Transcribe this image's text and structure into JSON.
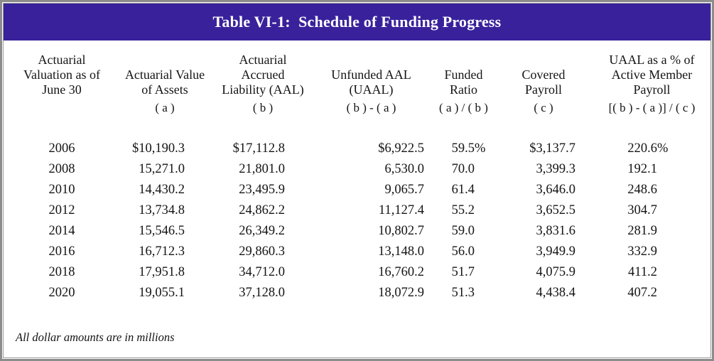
{
  "title": "Table VI-1:  Schedule of Funding Progress",
  "footnote": "All dollar amounts are in millions",
  "colors": {
    "header_band": "#39219B",
    "header_text": "#FFFFFF",
    "body_text": "#141414",
    "border_gray": "#8C8C8C"
  },
  "table": {
    "columns": [
      {
        "lines": [
          "Actuarial",
          "Valuation as of",
          "June 30"
        ],
        "formula": ""
      },
      {
        "lines": [
          "Actuarial Value",
          "of Assets"
        ],
        "formula": "( a )"
      },
      {
        "lines": [
          "Actuarial",
          "Accrued",
          "Liability (AAL)"
        ],
        "formula": "( b )"
      },
      {
        "lines": [
          "Unfunded AAL",
          "(UAAL)"
        ],
        "formula": "( b ) - ( a )"
      },
      {
        "lines": [
          "Funded",
          "Ratio"
        ],
        "formula": "( a ) / ( b )"
      },
      {
        "lines": [
          "Covered",
          "Payroll"
        ],
        "formula": "( c )"
      },
      {
        "lines": [
          "UAAL as a % of",
          "Active Member",
          "Payroll"
        ],
        "formula": "[( b ) - ( a )] / ( c )"
      }
    ],
    "rows": [
      [
        "2006",
        "$10,190.3",
        "$17,112.8",
        "$6,922.5",
        "59.5%",
        "$3,137.7",
        "220.6%"
      ],
      [
        "2008",
        "15,271.0",
        "21,801.0",
        "6,530.0",
        "70.0",
        "3,399.3",
        "192.1"
      ],
      [
        "2010",
        "14,430.2",
        "23,495.9",
        "9,065.7",
        "61.4",
        "3,646.0",
        "248.6"
      ],
      [
        "2012",
        "13,734.8",
        "24,862.2",
        "11,127.4",
        "55.2",
        "3,652.5",
        "304.7"
      ],
      [
        "2014",
        "15,546.5",
        "26,349.2",
        "10,802.7",
        "59.0",
        "3,831.6",
        "281.9"
      ],
      [
        "2016",
        "16,712.3",
        "29,860.3",
        "13,148.0",
        "56.0",
        "3,949.9",
        "332.9"
      ],
      [
        "2018",
        "17,951.8",
        "34,712.0",
        "16,760.2",
        "51.7",
        "4,075.9",
        "411.2"
      ],
      [
        "2020",
        "19,055.1",
        "37,128.0",
        "18,072.9",
        "51.3",
        "4,438.4",
        "407.2"
      ]
    ]
  }
}
